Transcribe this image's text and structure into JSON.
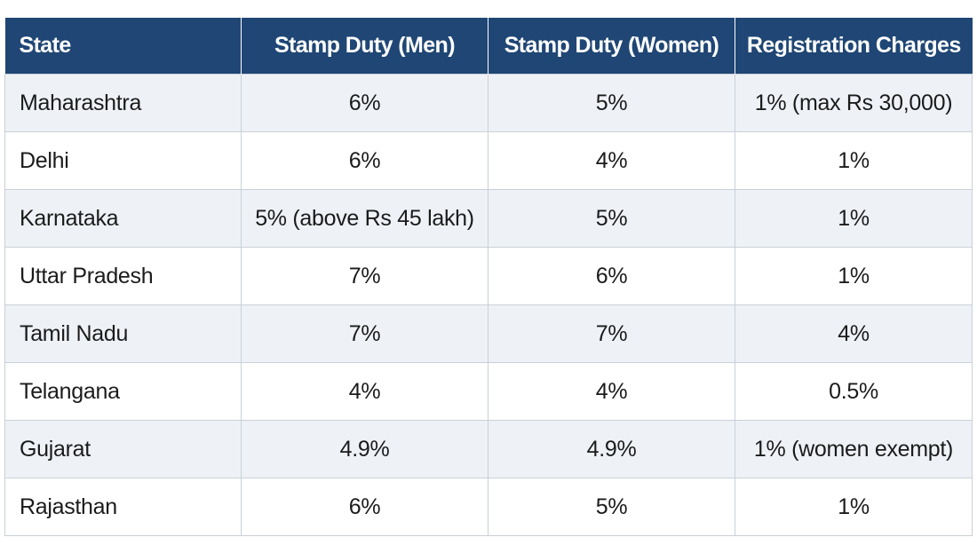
{
  "table": {
    "headers": [
      "State",
      "Stamp Duty (Men)",
      "Stamp Duty (Women)",
      "Registration Charges"
    ],
    "rows": [
      [
        "Maharashtra",
        "6%",
        "5%",
        "1% (max Rs 30,000)"
      ],
      [
        "Delhi",
        "6%",
        "4%",
        "1%"
      ],
      [
        "Karnataka",
        "5% (above Rs 45 lakh)",
        "5%",
        "1%"
      ],
      [
        "Uttar Pradesh",
        "7%",
        "6%",
        "1%"
      ],
      [
        "Tamil Nadu",
        "7%",
        "7%",
        "4%"
      ],
      [
        "Telangana",
        "4%",
        "4%",
        "0.5%"
      ],
      [
        "Gujarat",
        "4.9%",
        "4.9%",
        "1% (women exempt)"
      ],
      [
        "Rajasthan",
        "6%",
        "5%",
        "1%"
      ]
    ]
  },
  "colors": {
    "header_bg": "#1f4674",
    "header_text": "#ffffff",
    "row_alt_bg": "#eef2f7",
    "row_bg": "#ffffff",
    "border": "#c9d0d8"
  }
}
